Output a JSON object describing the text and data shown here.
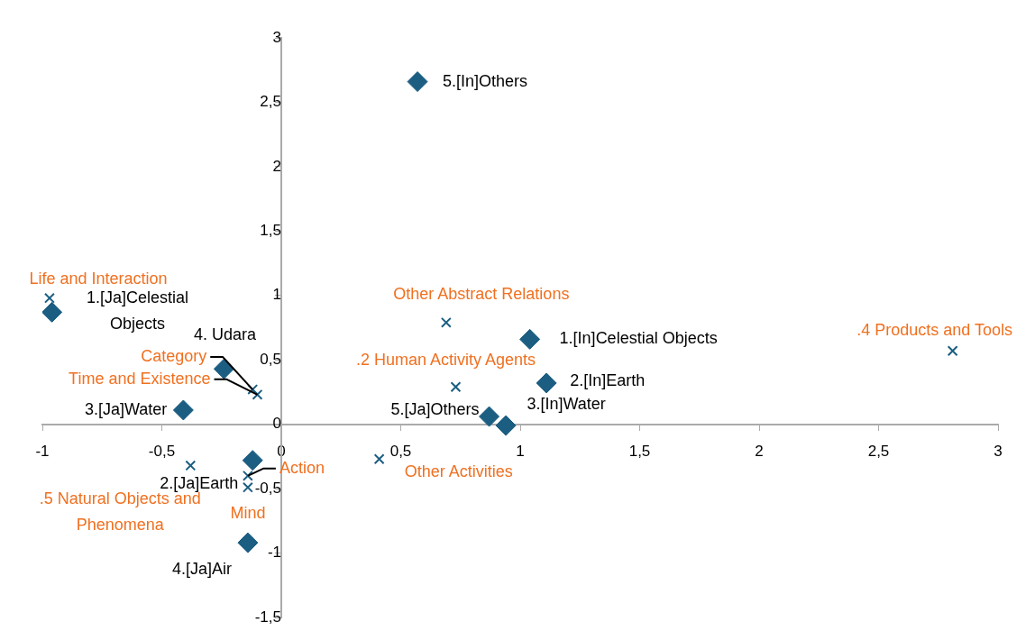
{
  "chart_data": {
    "type": "scatter",
    "xlim": [
      -1,
      3
    ],
    "xticks": [
      -1,
      {
        "value": -0.5,
        "label": "-0,5"
      },
      0,
      {
        "value": 0.5,
        "label": "0,5"
      },
      1,
      {
        "value": 1.5,
        "label": "1,5"
      },
      2,
      {
        "value": 2.5,
        "label": "2,5"
      },
      3
    ],
    "ylim": [
      -1.5,
      3
    ],
    "yticks": [
      {
        "value": -1.5,
        "label": "-1,5"
      },
      -1,
      {
        "value": -0.5,
        "label": "-0,5"
      },
      0,
      {
        "value": 0.5,
        "label": "0,5"
      },
      1,
      {
        "value": 1.5,
        "label": "1,5"
      },
      2,
      {
        "value": 2.5,
        "label": "2,5"
      },
      3
    ],
    "grid": false,
    "legend": false,
    "series": [
      {
        "color": "#1b5e82",
        "marker": "diamond",
        "x": [
          0.57,
          -0.96,
          -0.24,
          -0.41,
          -0.12,
          -0.14,
          1.04,
          1.11,
          0.87,
          0.94
        ],
        "values": [
          2.66,
          0.87,
          0.43,
          0.11,
          -0.28,
          -0.92,
          0.66,
          0.32,
          0.06,
          -0.01
        ]
      },
      {
        "color": "#1b5e82",
        "marker": "cross",
        "x": [
          -0.97,
          0.69,
          2.81,
          0.73,
          -0.12,
          -0.1,
          -0.38,
          0.41,
          -0.14,
          -0.14
        ],
        "values": [
          0.98,
          0.79,
          0.57,
          0.29,
          0.27,
          0.23,
          -0.32,
          -0.27,
          -0.4,
          -0.49
        ]
      }
    ],
    "annotations": [
      {
        "text": "5.[In]Others",
        "x": 0.57,
        "y": 2.66
      },
      {
        "text": "1.[Ja]Celestial Objects",
        "x": -0.96,
        "y": 0.87
      },
      {
        "text": "4. Udara",
        "x": -0.24,
        "y": 0.43
      },
      {
        "text": "3.[Ja]Water",
        "x": -0.41,
        "y": 0.11
      },
      {
        "text": "2.[Ja]Earth",
        "x": -0.12,
        "y": -0.28
      },
      {
        "text": "4.[Ja]Air",
        "x": -0.14,
        "y": -0.92
      },
      {
        "text": "1.[In]Celestial Objects",
        "x": 1.04,
        "y": 0.66
      },
      {
        "text": "2.[In]Earth",
        "x": 1.11,
        "y": 0.32
      },
      {
        "text": "5.[Ja]Others",
        "x": 0.87,
        "y": 0.06
      },
      {
        "text": "3.[In]Water",
        "x": 0.94,
        "y": -0.01
      },
      {
        "text": "Life and Interaction",
        "x": -0.97,
        "y": 0.98
      },
      {
        "text": "Other Abstract Relations",
        "x": 0.69,
        "y": 0.79
      },
      {
        "text": ".4 Products and Tools",
        "x": 2.81,
        "y": 0.57
      },
      {
        "text": ".2 Human Activity Agents",
        "x": 0.73,
        "y": 0.29
      },
      {
        "text": "Category",
        "x": -0.12,
        "y": 0.27
      },
      {
        "text": "Time and Existence",
        "x": -0.1,
        "y": 0.23
      },
      {
        "text": ".5 Natural Objects and Phenomena",
        "x": -0.38,
        "y": -0.32
      },
      {
        "text": "Other Activities",
        "x": 0.41,
        "y": -0.27
      },
      {
        "text": "Action",
        "x": -0.14,
        "y": -0.4
      },
      {
        "text": "Mind",
        "x": -0.14,
        "y": -0.49
      }
    ]
  }
}
